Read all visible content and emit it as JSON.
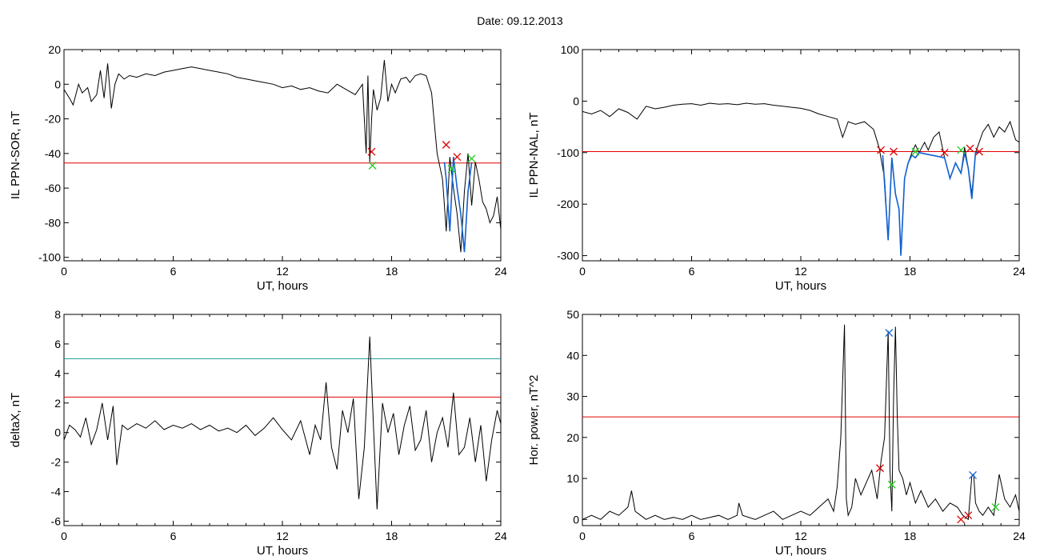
{
  "header": {
    "date_label": "Date:",
    "date_value": "09.12.2013"
  },
  "colors": {
    "trace": "#000000",
    "threshold": "#e00000",
    "threshold2": "#1a9a9a",
    "highlight": "#1060d0",
    "marker_red": "#e00000",
    "marker_green": "#22cc22",
    "marker_blue": "#1060d0"
  },
  "chart_data": [
    {
      "id": "sor",
      "type": "line",
      "title": "",
      "xlabel": "UT, hours",
      "ylabel": "IL PPN-SOR, nT",
      "xlim": [
        0,
        24
      ],
      "ylim": [
        -102,
        20
      ],
      "xticks": [
        0,
        6,
        12,
        18,
        24
      ],
      "yticks": [
        20,
        0,
        -20,
        -40,
        -60,
        -80,
        -100
      ],
      "thresholds": [
        {
          "value": -45.5,
          "color": "red"
        }
      ],
      "series": [
        {
          "x": [
            0,
            0.3,
            0.5,
            0.8,
            1.0,
            1.3,
            1.5,
            1.8,
            2.0,
            2.2,
            2.4,
            2.6,
            2.8,
            3.0,
            3.3,
            3.6,
            4.0,
            4.5,
            5.0,
            5.5,
            6.0,
            6.5,
            7.0,
            7.5,
            8.0,
            8.5,
            9.0,
            9.5,
            10.0,
            10.5,
            11.0,
            11.5,
            12.0,
            12.5,
            13.0,
            13.5,
            14.0,
            14.5,
            15.0,
            15.5,
            16.0,
            16.4,
            16.6,
            16.7,
            16.8,
            16.9,
            17.0,
            17.2,
            17.4,
            17.6,
            17.8,
            18.0,
            18.2,
            18.5,
            18.8,
            19.0,
            19.3,
            19.6,
            19.9,
            20.2,
            20.5,
            20.8,
            21.0,
            21.2,
            21.4,
            21.6,
            21.8,
            22.0,
            22.2,
            22.4,
            22.6,
            22.8,
            23.0,
            23.2,
            23.4,
            23.6,
            23.8,
            24.0
          ],
          "y": [
            -3,
            -8,
            -12,
            0,
            -5,
            -2,
            -10,
            -6,
            8,
            -8,
            12,
            -14,
            0,
            6,
            3,
            5,
            4,
            6,
            5,
            7,
            8,
            9,
            10,
            9,
            8,
            7,
            6,
            4,
            3,
            2,
            1,
            0,
            -2,
            -1,
            -3,
            -2,
            -4,
            -5,
            0,
            -3,
            -6,
            0,
            -40,
            5,
            -45,
            -20,
            -3,
            -15,
            -8,
            14,
            -10,
            0,
            -5,
            3,
            4,
            1,
            5,
            6,
            5,
            -5,
            -40,
            -55,
            -85,
            -42,
            -60,
            -75,
            -97,
            -62,
            -40,
            -70,
            -45,
            -55,
            -68,
            -72,
            -80,
            -76,
            -65,
            -84
          ]
        }
      ],
      "highlight": {
        "x": [
          20.9,
          21.0,
          21.2,
          21.4,
          21.6,
          21.8,
          22.0,
          22.2,
          22.4
        ],
        "y": [
          -45,
          -55,
          -85,
          -42,
          -60,
          -75,
          -97,
          -62,
          -45
        ]
      },
      "markers": [
        {
          "x": 16.9,
          "y": -39,
          "color": "red"
        },
        {
          "x": 16.95,
          "y": -47,
          "color": "green"
        },
        {
          "x": 21.0,
          "y": -35,
          "color": "red"
        },
        {
          "x": 21.3,
          "y": -49,
          "color": "green"
        },
        {
          "x": 21.6,
          "y": -42,
          "color": "red"
        },
        {
          "x": 22.4,
          "y": -43,
          "color": "green"
        }
      ]
    },
    {
      "id": "nal",
      "type": "line",
      "title": "",
      "xlabel": "UT, hours",
      "ylabel": "IL PPN-NAL, nT",
      "xlim": [
        0,
        24
      ],
      "ylim": [
        -310,
        100
      ],
      "xticks": [
        0,
        6,
        12,
        18,
        24
      ],
      "yticks": [
        100,
        0,
        -100,
        -200,
        -300
      ],
      "thresholds": [
        {
          "value": -98,
          "color": "red"
        }
      ],
      "series": [
        {
          "x": [
            0,
            0.5,
            1.0,
            1.5,
            2.0,
            2.5,
            3.0,
            3.5,
            4.0,
            4.5,
            5.0,
            5.5,
            6.0,
            6.5,
            7.0,
            7.5,
            8.0,
            8.5,
            9.0,
            9.5,
            10.0,
            10.5,
            11.0,
            11.5,
            12.0,
            12.5,
            13.0,
            13.5,
            14.0,
            14.3,
            14.6,
            15.0,
            15.5,
            16.0,
            16.3,
            16.6,
            16.8,
            17.0,
            17.2,
            17.4,
            17.5,
            17.7,
            17.9,
            18.1,
            18.3,
            18.5,
            18.8,
            19.0,
            19.3,
            19.6,
            19.9,
            20.2,
            20.5,
            20.8,
            21.0,
            21.2,
            21.4,
            21.6,
            21.8,
            22.0,
            22.3,
            22.6,
            22.9,
            23.2,
            23.5,
            23.8,
            24.0
          ],
          "y": [
            -20,
            -25,
            -18,
            -30,
            -15,
            -22,
            -35,
            -10,
            -15,
            -12,
            -8,
            -6,
            -5,
            -8,
            -4,
            -6,
            -5,
            -7,
            -4,
            -6,
            -5,
            -8,
            -10,
            -12,
            -14,
            -18,
            -25,
            -30,
            -35,
            -70,
            -40,
            -45,
            -40,
            -55,
            -90,
            -150,
            -270,
            -110,
            -180,
            -210,
            -300,
            -150,
            -120,
            -100,
            -85,
            -100,
            -80,
            -95,
            -70,
            -60,
            -110,
            -150,
            -120,
            -140,
            -90,
            -130,
            -180,
            -100,
            -80,
            -60,
            -45,
            -70,
            -50,
            -60,
            -40,
            -75,
            -80
          ]
        }
      ],
      "highlight": {
        "x": [
          16.5,
          16.8,
          17.0,
          17.2,
          17.4,
          17.5,
          17.7,
          17.9,
          18.1,
          18.3,
          18.5,
          19.9,
          20.2,
          20.5,
          20.8,
          21.0,
          21.2,
          21.4,
          21.6,
          21.8
        ],
        "y": [
          -105,
          -270,
          -110,
          -180,
          -210,
          -300,
          -150,
          -120,
          -105,
          -110,
          -100,
          -110,
          -150,
          -120,
          -140,
          -100,
          -130,
          -190,
          -100,
          -100
        ]
      },
      "markers": [
        {
          "x": 16.4,
          "y": -95,
          "color": "red"
        },
        {
          "x": 17.1,
          "y": -98,
          "color": "red"
        },
        {
          "x": 18.3,
          "y": -98,
          "color": "green"
        },
        {
          "x": 19.9,
          "y": -100,
          "color": "red"
        },
        {
          "x": 20.8,
          "y": -95,
          "color": "green"
        },
        {
          "x": 21.3,
          "y": -92,
          "color": "red"
        },
        {
          "x": 21.8,
          "y": -98,
          "color": "red"
        }
      ]
    },
    {
      "id": "deltax",
      "type": "line",
      "title": "",
      "xlabel": "UT, hours",
      "ylabel": "deltaX, nT",
      "xlim": [
        0,
        24
      ],
      "ylim": [
        -6.3,
        8
      ],
      "xticks": [
        0,
        6,
        12,
        18,
        24
      ],
      "yticks": [
        8,
        6,
        4,
        2,
        0,
        -2,
        -4,
        -6
      ],
      "thresholds": [
        {
          "value": 5.0,
          "color": "cyan"
        },
        {
          "value": 2.4,
          "color": "red"
        }
      ],
      "series": [
        {
          "x": [
            0,
            0.3,
            0.6,
            0.9,
            1.2,
            1.5,
            1.8,
            2.1,
            2.4,
            2.7,
            2.9,
            3.2,
            3.5,
            4.0,
            4.5,
            5.0,
            5.5,
            6.0,
            6.5,
            7.0,
            7.5,
            8.0,
            8.5,
            9.0,
            9.5,
            10.0,
            10.5,
            11.0,
            11.5,
            12.0,
            12.5,
            13.0,
            13.5,
            13.8,
            14.1,
            14.4,
            14.7,
            15.0,
            15.3,
            15.6,
            15.9,
            16.2,
            16.5,
            16.8,
            17.0,
            17.2,
            17.5,
            17.8,
            18.1,
            18.4,
            18.7,
            19.0,
            19.3,
            19.6,
            19.9,
            20.2,
            20.5,
            20.8,
            21.1,
            21.4,
            21.7,
            22.0,
            22.3,
            22.6,
            22.9,
            23.2,
            23.5,
            23.8,
            24.0
          ],
          "y": [
            -0.5,
            0.5,
            0.2,
            -0.3,
            1.0,
            -0.8,
            0.2,
            2.0,
            -0.5,
            1.8,
            -2.2,
            0.5,
            0.2,
            0.6,
            0.3,
            0.8,
            0.2,
            0.5,
            0.3,
            0.6,
            0.2,
            0.5,
            0.1,
            0.3,
            0.0,
            0.5,
            -0.2,
            0.3,
            1.0,
            0.2,
            -0.5,
            0.8,
            -1.5,
            0.5,
            -0.5,
            3.4,
            -1.0,
            -2.5,
            1.5,
            0.0,
            2.3,
            -4.5,
            -1.0,
            6.5,
            0.5,
            -5.2,
            2.0,
            0.0,
            1.3,
            -1.5,
            0.5,
            1.8,
            -1.2,
            -0.5,
            1.5,
            -2.0,
            0.0,
            1.0,
            -1.0,
            2.7,
            -1.5,
            -1.0,
            1.0,
            -2.0,
            0.5,
            -3.3,
            -0.5,
            1.5,
            0.6
          ]
        }
      ],
      "markers": []
    },
    {
      "id": "power",
      "type": "line",
      "title": "",
      "xlabel": "UT, hours",
      "ylabel": "Hor. power, nT^2",
      "xlim": [
        0,
        24
      ],
      "ylim": [
        -1.5,
        50
      ],
      "xticks": [
        0,
        6,
        12,
        18,
        24
      ],
      "yticks": [
        50,
        40,
        30,
        20,
        10,
        0
      ],
      "thresholds": [
        {
          "value": 25,
          "color": "red"
        }
      ],
      "series": [
        {
          "x": [
            0,
            0.5,
            1.0,
            1.5,
            2.0,
            2.5,
            2.7,
            2.9,
            3.2,
            3.5,
            4.0,
            4.5,
            5.0,
            5.5,
            6.0,
            6.5,
            7.0,
            7.5,
            8.0,
            8.5,
            8.6,
            8.8,
            9.5,
            10.0,
            10.5,
            11.0,
            11.5,
            12.0,
            12.5,
            13.0,
            13.5,
            13.8,
            14.0,
            14.2,
            14.4,
            14.5,
            14.6,
            14.8,
            15.0,
            15.3,
            15.6,
            15.9,
            16.2,
            16.4,
            16.6,
            16.8,
            16.9,
            17.0,
            17.1,
            17.2,
            17.3,
            17.4,
            17.6,
            17.8,
            18.0,
            18.3,
            18.6,
            19.0,
            19.4,
            19.8,
            20.2,
            20.6,
            20.9,
            21.2,
            21.4,
            21.5,
            21.6,
            21.8,
            22.0,
            22.3,
            22.6,
            22.9,
            23.2,
            23.5,
            23.8,
            24.0
          ],
          "y": [
            0,
            1,
            0,
            2,
            1,
            3,
            7,
            2,
            1,
            0,
            1,
            0,
            0.5,
            0,
            1,
            0,
            0.5,
            1,
            0,
            1,
            4,
            1,
            0,
            1,
            2,
            0,
            1,
            2,
            1,
            3,
            5,
            2,
            8,
            20,
            47.5,
            5,
            1,
            3,
            10,
            6,
            9,
            12,
            5,
            14,
            20,
            46,
            12,
            2,
            30,
            47,
            25,
            12,
            10,
            6,
            9,
            4,
            7,
            3,
            5,
            2,
            4,
            3,
            1,
            0,
            10.5,
            11,
            4,
            2,
            1,
            3,
            1,
            11,
            5,
            3,
            6,
            2
          ]
        }
      ],
      "markers": [
        {
          "x": 16.35,
          "y": 12.5,
          "color": "red"
        },
        {
          "x": 16.85,
          "y": 45.5,
          "color": "blue"
        },
        {
          "x": 17.0,
          "y": 8.5,
          "color": "green"
        },
        {
          "x": 20.8,
          "y": 0,
          "color": "red"
        },
        {
          "x": 21.2,
          "y": 1,
          "color": "red"
        },
        {
          "x": 21.45,
          "y": 10.8,
          "color": "blue"
        },
        {
          "x": 22.7,
          "y": 3,
          "color": "green"
        }
      ]
    }
  ]
}
